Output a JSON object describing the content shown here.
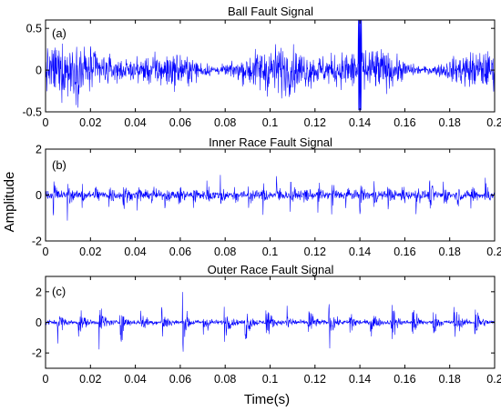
{
  "chart_data": {
    "type": "line",
    "shared_ylabel": "Amplitude",
    "shared_xlabel": "Time(s)",
    "colors": {
      "signal": "#0000ff",
      "axes": "#000000",
      "background": "#ffffff"
    },
    "panels": [
      {
        "title": "Ball Fault Signal",
        "label": "(a)",
        "xlim": [
          0,
          0.2
        ],
        "ylim": [
          -0.5,
          0.6
        ],
        "x_ticks": [
          0,
          0.02,
          0.04,
          0.06,
          0.08,
          0.1,
          0.12,
          0.14,
          0.16,
          0.18,
          0.2
        ],
        "x_tick_labels": [
          "0",
          "0.02",
          "0.04",
          "0.06",
          "0.08",
          "0.1",
          "0.12",
          "0.14",
          "0.16",
          "0.18",
          "0.2"
        ],
        "y_ticks": [
          -0.5,
          0,
          0.5
        ],
        "y_tick_labels": [
          "-0.5",
          "0",
          "0.5"
        ],
        "signal": {
          "kind": "broadband noise",
          "typical_amplitude": 0.25,
          "peak_amplitude": 0.6,
          "peak_at_s": 0.14
        }
      },
      {
        "title": "Inner Race Fault Signal",
        "label": "(b)",
        "xlim": [
          0,
          0.2
        ],
        "ylim": [
          -2,
          2
        ],
        "x_ticks": [
          0,
          0.02,
          0.04,
          0.06,
          0.08,
          0.1,
          0.12,
          0.14,
          0.16,
          0.18,
          0.2
        ],
        "x_tick_labels": [
          "0",
          "0.02",
          "0.04",
          "0.06",
          "0.08",
          "0.1",
          "0.12",
          "0.14",
          "0.16",
          "0.18",
          "0.2"
        ],
        "y_ticks": [
          -2,
          0,
          2
        ],
        "y_tick_labels": [
          "-2",
          "0",
          "2"
        ],
        "signal": {
          "kind": "periodic impulses",
          "impulse_period_s": 0.0062,
          "impulse_amplitude": 1.2,
          "baseline_amplitude": 0.15
        }
      },
      {
        "title": "Outer Race Fault Signal",
        "label": "(c)",
        "xlim": [
          0,
          0.2
        ],
        "ylim": [
          -3,
          3
        ],
        "x_ticks": [
          0,
          0.02,
          0.04,
          0.06,
          0.08,
          0.1,
          0.12,
          0.14,
          0.16,
          0.18,
          0.2
        ],
        "x_tick_labels": [
          "0",
          "0.02",
          "0.04",
          "0.06",
          "0.08",
          "0.1",
          "0.12",
          "0.14",
          "0.16",
          "0.18",
          "0.2"
        ],
        "y_ticks": [
          -2,
          0,
          2
        ],
        "y_tick_labels": [
          "-2",
          "0",
          "2"
        ],
        "signal": {
          "kind": "periodic impulses",
          "impulse_period_s": 0.0093,
          "impulse_amplitude": 2.2,
          "baseline_amplitude": 0.12
        }
      }
    ]
  }
}
